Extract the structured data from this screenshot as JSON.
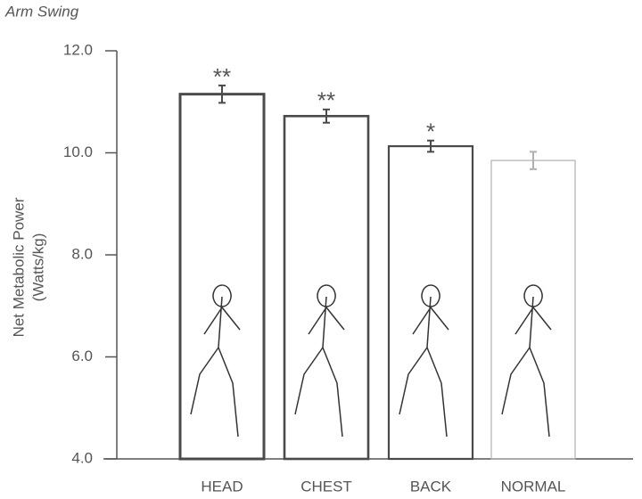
{
  "chart_data": {
    "type": "bar",
    "title": "Arm Swing",
    "ylabel": [
      "Net Metabolic Power",
      "(Watts/kg)"
    ],
    "categories": [
      "HEAD",
      "CHEST",
      "BACK",
      "NORMAL"
    ],
    "values": [
      11.15,
      10.72,
      10.13,
      9.85
    ],
    "errors": [
      0.17,
      0.13,
      0.11,
      0.17
    ],
    "annotations": [
      "**",
      "**",
      "*",
      null
    ],
    "colors": [
      "#4a4a4a",
      "#4a4a4a",
      "#4a4a4a",
      "#b0b0b0"
    ],
    "ylim": [
      4,
      12
    ],
    "yticks": [
      {
        "value": 4,
        "label": "4.0"
      },
      {
        "value": 6,
        "label": "6.0"
      },
      {
        "value": 8,
        "label": "8.0"
      },
      {
        "value": 10,
        "label": "10.0"
      },
      {
        "value": 12,
        "label": "12.0"
      }
    ]
  }
}
